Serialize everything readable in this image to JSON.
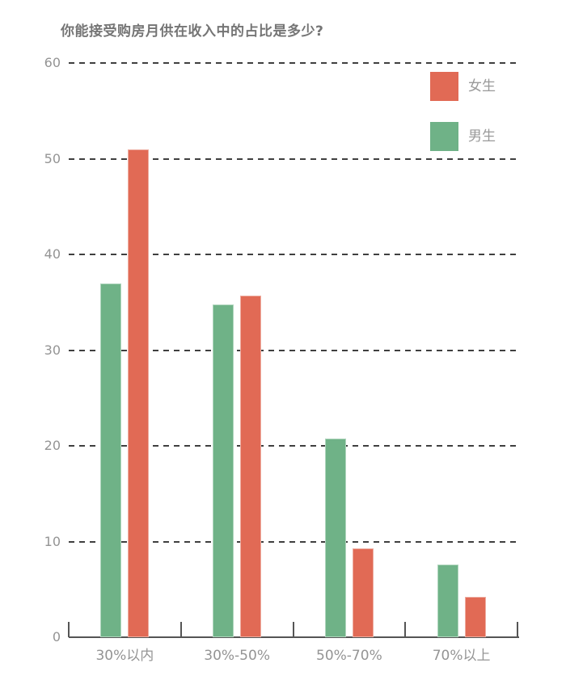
{
  "page": {
    "background": "#ffffff"
  },
  "chart_data": {
    "type": "bar",
    "title": "你能接受购房月供在收入中的占比是多少?",
    "categories": [
      "30%以内",
      "30%-50%",
      "50%-70%",
      "70%以上"
    ],
    "series": [
      {
        "name": "男生",
        "color": "#6FB287",
        "values": [
          37,
          34.8,
          20.8,
          7.6
        ]
      },
      {
        "name": "女生",
        "color": "#E16A55",
        "values": [
          51,
          35.7,
          9.3,
          4.2
        ]
      }
    ],
    "legend": {
      "position": "top-right",
      "items": [
        {
          "label": "女生",
          "color": "#E16A55"
        },
        {
          "label": "男生",
          "color": "#6FB287"
        }
      ]
    },
    "xlabel": "",
    "ylabel": "",
    "ylim": [
      0,
      60
    ],
    "yticks": [
      0,
      10,
      20,
      30,
      40,
      50,
      60
    ],
    "grid": {
      "direction": "horizontal",
      "style": "dashed",
      "color": "#3f3f3f"
    },
    "axis": {
      "line_color": "#555555",
      "tick_marks": "up-from-baseline"
    },
    "text_colors": {
      "title": "#757575",
      "axis_labels": "#949494",
      "legend": "#999999"
    }
  }
}
